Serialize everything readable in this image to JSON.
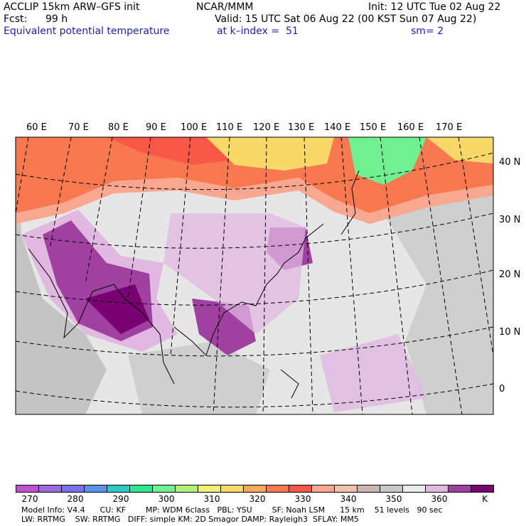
{
  "header": {
    "model": "ACCLIP 15km ARW–GFS init",
    "org": "NCAR/MMM",
    "init": "Init: 12 UTC Tue 02 Aug 22",
    "fcst_label": "Fcst:",
    "fcst_value": "99 h",
    "valid": "Valid: 15 UTC Sat 06 Aug 22 (00 KST Sun 07 Aug 22)",
    "field": "Equivalent potential temperature",
    "level": "at k–index =  51",
    "smooth": "sm= 2"
  },
  "map": {
    "lon_labels": [
      "60 E",
      "70 E",
      "80 E",
      "90 E",
      "100 E",
      "110 E",
      "120 E",
      "130 E",
      "140 E",
      "150 E",
      "160 E",
      "170 E"
    ],
    "lat_labels": [
      "40 N",
      "30 N",
      "20 N",
      "10 N",
      "0"
    ]
  },
  "colorbar": {
    "colors": [
      "#c050d0",
      "#9a6ae0",
      "#7a70e8",
      "#5a90e8",
      "#30c8c0",
      "#30e890",
      "#70f090",
      "#b0f078",
      "#f0f078",
      "#f8d868",
      "#f8a858",
      "#f87850",
      "#f85848",
      "#f8a890",
      "#f0c0a8",
      "#c8b8b0",
      "#c8c8c8",
      "#ececec",
      "#e0b8e0",
      "#a040a0",
      "#780070"
    ],
    "tick_labels": [
      "270",
      "280",
      "290",
      "300",
      "310",
      "320",
      "330",
      "340",
      "350",
      "360"
    ],
    "unit": "K"
  },
  "model_info": {
    "line1": "Model Info: V4.4      CU: KF        MP: WDM 6class   PBL: YSU        SF: Noah LSM      15 km    51 levels   90 sec",
    "line2": "LW: RRTMG    SW: RRTMG   DIFF: simple KM: 2D Smagor DAMP: Rayleigh3  SFLAY: MM5"
  }
}
